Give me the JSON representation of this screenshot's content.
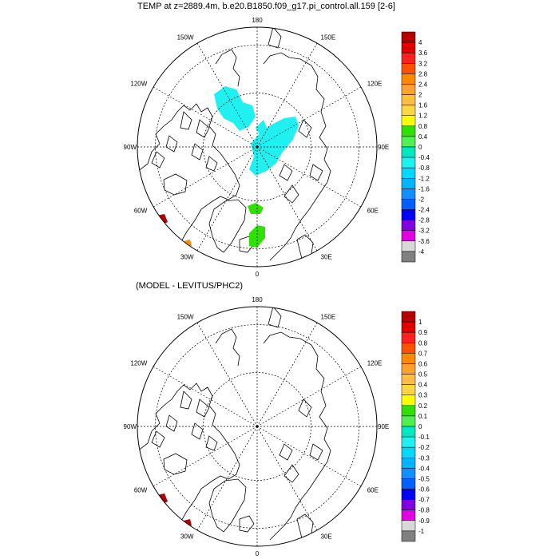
{
  "chart_data": [
    {
      "type": "heatmap",
      "projection": "north-polar-stereographic",
      "title": "TEMP at z=2889.4m, b.e20.B1850.f09_g17.pi_control.all.159 [2-6]",
      "longitude_labels": [
        "180",
        "150E",
        "120E",
        "90E",
        "60E",
        "30E",
        "0",
        "30W",
        "60W",
        "90W",
        "120W",
        "150W"
      ],
      "colorbar": {
        "levels": [
          "4",
          "3.6",
          "3.2",
          "2.8",
          "2.4",
          "2",
          "1.6",
          "1.2",
          "0.8",
          "0.4",
          "0",
          "-0.4",
          "-0.8",
          "-1.2",
          "-1.6",
          "-2",
          "-2.4",
          "-2.8",
          "-3.2",
          "-3.6",
          "-4"
        ],
        "colors": [
          "#b40000",
          "#e00000",
          "#ff2020",
          "#ff5000",
          "#ff8a00",
          "#ffa030",
          "#ffbe40",
          "#ffd640",
          "#ffff00",
          "#30e000",
          "#50f050",
          "#00e8c0",
          "#20f0f0",
          "#00d8ff",
          "#00b4ff",
          "#1090ff",
          "#0060ff",
          "#0000ff",
          "#8000e0",
          "#e000e0",
          "#d8d8d8",
          "#808080"
        ]
      },
      "anomaly_regions": [
        {
          "region": "canada-basin-north",
          "value_range": [
            -0.4,
            0
          ],
          "color": "#20f0f0"
        },
        {
          "region": "pole-central",
          "value_range": [
            -0.4,
            0
          ],
          "color": "#20f0f0"
        },
        {
          "region": "norwegian-sea",
          "value_range": [
            0.4,
            0.8
          ],
          "color": "#30e000"
        },
        {
          "region": "labrador-coast",
          "value_range": [
            3.6,
            4
          ],
          "color": "#b40000"
        }
      ]
    },
    {
      "type": "heatmap",
      "projection": "north-polar-stereographic",
      "title": "(MODEL - LEVITUS/PHC2)",
      "longitude_labels": [
        "180",
        "150E",
        "120E",
        "90E",
        "60E",
        "30E",
        "0",
        "30W",
        "60W",
        "90W",
        "120W",
        "150W"
      ],
      "colorbar": {
        "levels": [
          "1",
          "0.9",
          "0.8",
          "0.7",
          "0.6",
          "0.5",
          "0.4",
          "0.3",
          "0.2",
          "0.1",
          "0",
          "-0.1",
          "-0.2",
          "-0.3",
          "-0.4",
          "-0.5",
          "-0.6",
          "-0.7",
          "-0.8",
          "-0.9",
          "-1"
        ],
        "colors": [
          "#b40000",
          "#e00000",
          "#ff2020",
          "#ff5000",
          "#ff8a00",
          "#ffa030",
          "#ffbe40",
          "#ffd640",
          "#ffff00",
          "#30e000",
          "#50f050",
          "#00e8c0",
          "#20f0f0",
          "#00d8ff",
          "#00b4ff",
          "#1090ff",
          "#0060ff",
          "#0000ff",
          "#8000e0",
          "#e000e0",
          "#d8d8d8",
          "#808080"
        ]
      },
      "anomaly_regions": [
        {
          "region": "labrador-coast",
          "value_range": [
            0.9,
            1
          ],
          "color": "#b40000"
        }
      ]
    }
  ]
}
